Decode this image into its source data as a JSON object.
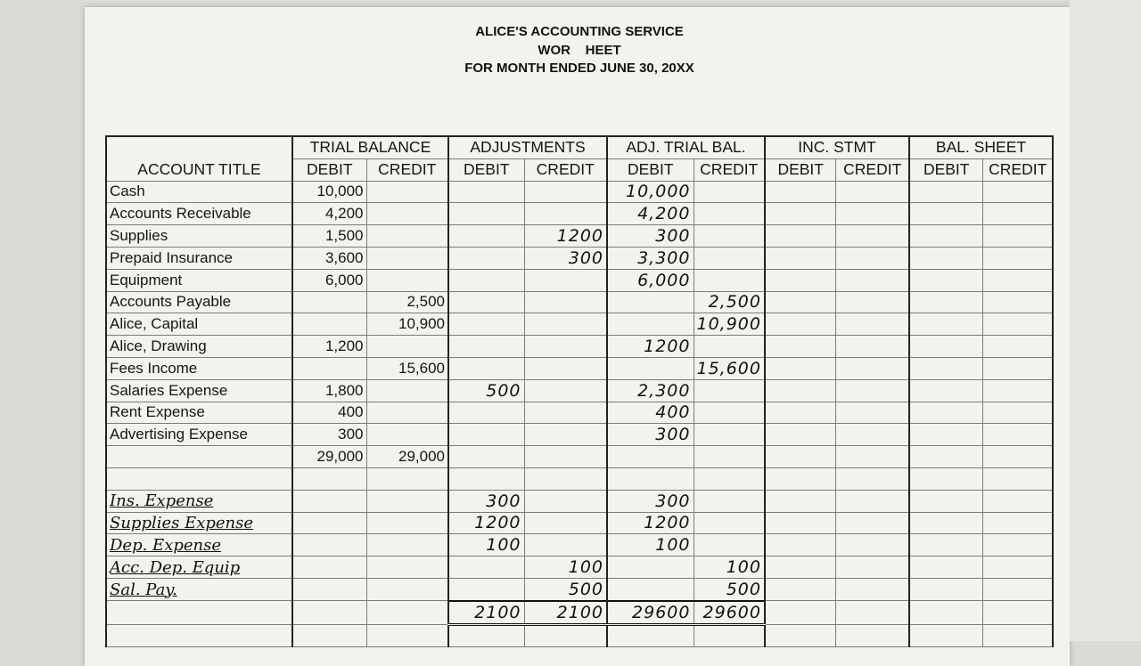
{
  "header": {
    "company": "ALICE'S ACCOUNTING SERVICE",
    "title": "WOR    HEET",
    "period": "FOR MONTH ENDED JUNE 30, 20XX"
  },
  "columns": {
    "account_title": "ACCOUNT TITLE",
    "groups": [
      "TRIAL BALANCE",
      "ADJUSTMENTS",
      "ADJ. TRIAL BAL.",
      "INC. STMT",
      "BAL. SHEET"
    ],
    "debit": "DEBIT",
    "credit": "CREDIT"
  },
  "rows": [
    {
      "account": "Cash",
      "tb_dr": "10,000",
      "tb_cr": "",
      "adj_dr": "",
      "adj_cr": "",
      "atb_dr": "10,000",
      "atb_cr": ""
    },
    {
      "account": "Accounts Receivable",
      "tb_dr": "4,200",
      "tb_cr": "",
      "adj_dr": "",
      "adj_cr": "",
      "atb_dr": "4,200",
      "atb_cr": ""
    },
    {
      "account": "Supplies",
      "tb_dr": "1,500",
      "tb_cr": "",
      "adj_dr": "",
      "adj_cr": "1200",
      "atb_dr": "300",
      "atb_cr": ""
    },
    {
      "account": "Prepaid Insurance",
      "tb_dr": "3,600",
      "tb_cr": "",
      "adj_dr": "",
      "adj_cr": "300",
      "atb_dr": "3,300",
      "atb_cr": ""
    },
    {
      "account": "Equipment",
      "tb_dr": "6,000",
      "tb_cr": "",
      "adj_dr": "",
      "adj_cr": "",
      "atb_dr": "6,000",
      "atb_cr": ""
    },
    {
      "account": "Accounts Payable",
      "tb_dr": "",
      "tb_cr": "2,500",
      "adj_dr": "",
      "adj_cr": "",
      "atb_dr": "",
      "atb_cr": "2,500"
    },
    {
      "account": "Alice, Capital",
      "tb_dr": "",
      "tb_cr": "10,900",
      "adj_dr": "",
      "adj_cr": "",
      "atb_dr": "",
      "atb_cr": "10,900"
    },
    {
      "account": "Alice, Drawing",
      "tb_dr": "1,200",
      "tb_cr": "",
      "adj_dr": "",
      "adj_cr": "",
      "atb_dr": "1200",
      "atb_cr": ""
    },
    {
      "account": "Fees Income",
      "tb_dr": "",
      "tb_cr": "15,600",
      "adj_dr": "",
      "adj_cr": "",
      "atb_dr": "",
      "atb_cr": "15,600"
    },
    {
      "account": "Salaries Expense",
      "tb_dr": "1,800",
      "tb_cr": "",
      "adj_dr": "500",
      "adj_cr": "",
      "atb_dr": "2,300",
      "atb_cr": ""
    },
    {
      "account": "Rent Expense",
      "tb_dr": "400",
      "tb_cr": "",
      "adj_dr": "",
      "adj_cr": "",
      "atb_dr": "400",
      "atb_cr": ""
    },
    {
      "account": "Advertising Expense",
      "tb_dr": "300",
      "tb_cr": "",
      "adj_dr": "",
      "adj_cr": "",
      "atb_dr": "300",
      "atb_cr": ""
    }
  ],
  "trial_balance_totals": {
    "debit": "29,000",
    "credit": "29,000"
  },
  "added_rows": [
    {
      "account": "Ins. Expense",
      "adj_dr": "300",
      "adj_cr": "",
      "atb_dr": "300",
      "atb_cr": ""
    },
    {
      "account": "Supplies Expense",
      "adj_dr": "1200",
      "adj_cr": "",
      "atb_dr": "1200",
      "atb_cr": ""
    },
    {
      "account": "Dep. Expense",
      "adj_dr": "100",
      "adj_cr": "",
      "atb_dr": "100",
      "atb_cr": ""
    },
    {
      "account": "Acc. Dep. Equip",
      "adj_dr": "",
      "adj_cr": "100",
      "atb_dr": "",
      "atb_cr": "100"
    },
    {
      "account": "Sal. Pay.",
      "adj_dr": "",
      "adj_cr": "500",
      "atb_dr": "",
      "atb_cr": "500"
    }
  ],
  "final_totals": {
    "adj_dr": "2100",
    "adj_cr": "2100",
    "atb_dr": "29600",
    "atb_cr": "29600"
  }
}
